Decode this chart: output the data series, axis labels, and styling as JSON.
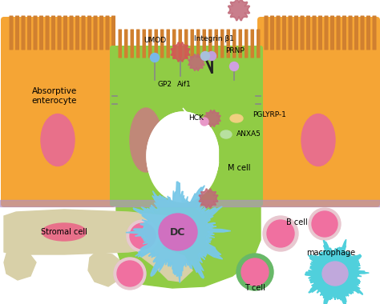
{
  "bg_color": "#ffffff",
  "orange_cell_color": "#F5A535",
  "orange_cell_dark": "#E8952A",
  "green_cell_color": "#90CC45",
  "pink_nucleus_color": "#E8708A",
  "brown_nucleus_color": "#C08878",
  "blue_dc_color": "#78C8E8",
  "purple_line_color": "#B090C8",
  "stromal_color": "#D8D0A8",
  "tcell_outer": "#68B868",
  "pink_cell_color": "#F070A0",
  "macrophage_outer": "#50D0DC",
  "macrophage_inner": "#C0A8DC",
  "bcell_outer": "#E8C8D0",
  "cilia_color": "#D08030",
  "bacteria_color": "#C06878",
  "umod_ball": "#78B8E8",
  "gp2_ball": "#80C860",
  "red_ball": "#D05858",
  "integrin_ball1": "#C0A0DC",
  "integrin_ball2": "#A8C0DC",
  "prnp_ball": "#D0A0E0",
  "anxa5_ball": "#B8E0A0",
  "pglyrp_ball": "#F0D080",
  "labels": {
    "absorptive": "Absorptive\nenterocyte",
    "mcell": "M cell",
    "dc": "DC",
    "stromal": "Stromal cell",
    "bcell": "B cell",
    "tcell": "T cell",
    "macrophage": "macrophage",
    "umod": "UMOD",
    "gp2": "GP2",
    "aif1": "Aif1",
    "hck": "HCK",
    "anxa5": "ANXA5",
    "integrin": "Integrin β1",
    "prnp": "PRNP",
    "pglyrp": "PGLYRP-1"
  }
}
